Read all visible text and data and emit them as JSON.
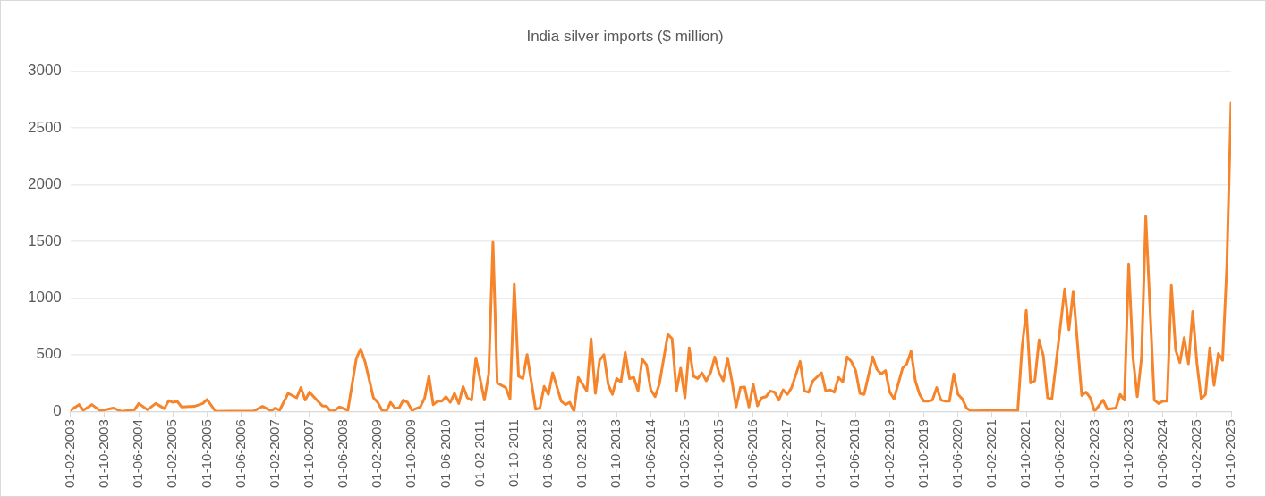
{
  "chart_data": {
    "type": "line",
    "title": "India silver imports ($ million)",
    "x": [
      "2003-02",
      "2003-04",
      "2003-05",
      "2003-07",
      "2003-09",
      "2003-12",
      "2004-02",
      "2004-05",
      "2004-06",
      "2004-08",
      "2004-10",
      "2004-12",
      "2005-01",
      "2005-02",
      "2005-03",
      "2005-04",
      "2005-07",
      "2005-09",
      "2005-10",
      "2005-12",
      "2006-09",
      "2006-11",
      "2006-12",
      "2007-01",
      "2007-02",
      "2007-03",
      "2007-05",
      "2007-07",
      "2007-08",
      "2007-09",
      "2007-10",
      "2008-01",
      "2008-02",
      "2008-03",
      "2008-04",
      "2008-05",
      "2008-07",
      "2008-09",
      "2008-10",
      "2008-11",
      "2009-01",
      "2009-02",
      "2009-03",
      "2009-04",
      "2009-05",
      "2009-06",
      "2009-07",
      "2009-08",
      "2009-09",
      "2009-10",
      "2009-12",
      "2010-01",
      "2010-02",
      "2010-03",
      "2010-04",
      "2010-05",
      "2010-06",
      "2010-07",
      "2010-08",
      "2010-09",
      "2010-10",
      "2010-11",
      "2010-12",
      "2011-01",
      "2011-03",
      "2011-04",
      "2011-05",
      "2011-06",
      "2011-08",
      "2011-09",
      "2011-10",
      "2011-11",
      "2011-12",
      "2012-01",
      "2012-03",
      "2012-04",
      "2012-05",
      "2012-06",
      "2012-07",
      "2012-09",
      "2012-10",
      "2012-11",
      "2012-12",
      "2013-01",
      "2013-03",
      "2013-04",
      "2013-05",
      "2013-06",
      "2013-07",
      "2013-08",
      "2013-09",
      "2013-10",
      "2013-11",
      "2013-12",
      "2014-01",
      "2014-02",
      "2014-03",
      "2014-04",
      "2014-05",
      "2014-06",
      "2014-07",
      "2014-08",
      "2014-10",
      "2014-11",
      "2014-12",
      "2015-01",
      "2015-02",
      "2015-03",
      "2015-04",
      "2015-05",
      "2015-06",
      "2015-07",
      "2015-08",
      "2015-09",
      "2015-10",
      "2015-11",
      "2015-12",
      "2016-01",
      "2016-02",
      "2016-03",
      "2016-04",
      "2016-05",
      "2016-06",
      "2016-07",
      "2016-08",
      "2016-09",
      "2016-10",
      "2016-11",
      "2016-12",
      "2017-01",
      "2017-02",
      "2017-03",
      "2017-05",
      "2017-06",
      "2017-07",
      "2017-08",
      "2017-10",
      "2017-11",
      "2017-12",
      "2018-01",
      "2018-02",
      "2018-03",
      "2018-04",
      "2018-05",
      "2018-06",
      "2018-07",
      "2018-08",
      "2018-10",
      "2018-11",
      "2018-12",
      "2019-01",
      "2019-02",
      "2019-03",
      "2019-05",
      "2019-06",
      "2019-07",
      "2019-08",
      "2019-09",
      "2019-10",
      "2019-11",
      "2019-12",
      "2020-01",
      "2020-02",
      "2020-03",
      "2020-04",
      "2020-05",
      "2020-06",
      "2020-07",
      "2020-08",
      "2020-09",
      "2021-05",
      "2021-08",
      "2021-09",
      "2021-10",
      "2021-11",
      "2021-12",
      "2022-01",
      "2022-02",
      "2022-03",
      "2022-04",
      "2022-07",
      "2022-08",
      "2022-09",
      "2022-11",
      "2022-12",
      "2023-01",
      "2023-02",
      "2023-04",
      "2023-05",
      "2023-07",
      "2023-08",
      "2023-09",
      "2023-10",
      "2023-11",
      "2023-12",
      "2024-01",
      "2024-02",
      "2024-04",
      "2024-05",
      "2024-06",
      "2024-07",
      "2024-08",
      "2024-09",
      "2024-10",
      "2024-11",
      "2024-12",
      "2025-01",
      "2025-02",
      "2025-03",
      "2025-04",
      "2025-05",
      "2025-06",
      "2025-07",
      "2025-08",
      "2025-09",
      "2025-10"
    ],
    "series": [
      {
        "color": "#f5842a",
        "values": [
          10,
          60,
          10,
          60,
          5,
          30,
          0,
          15,
          70,
          15,
          70,
          25,
          95,
          80,
          90,
          40,
          45,
          70,
          105,
          0,
          5,
          45,
          25,
          5,
          30,
          10,
          160,
          120,
          210,
          100,
          170,
          50,
          45,
          0,
          10,
          40,
          10,
          470,
          550,
          440,
          120,
          80,
          10,
          0,
          80,
          30,
          30,
          100,
          80,
          10,
          40,
          120,
          310,
          60,
          90,
          90,
          130,
          80,
          160,
          70,
          220,
          120,
          100,
          470,
          100,
          330,
          1490,
          250,
          210,
          110,
          1120,
          310,
          290,
          500,
          20,
          30,
          220,
          150,
          340,
          90,
          60,
          80,
          0,
          300,
          180,
          640,
          160,
          450,
          500,
          240,
          150,
          290,
          260,
          520,
          290,
          300,
          180,
          460,
          410,
          190,
          130,
          240,
          680,
          640,
          180,
          380,
          120,
          560,
          310,
          290,
          340,
          270,
          340,
          480,
          340,
          270,
          470,
          270,
          40,
          210,
          215,
          40,
          240,
          50,
          120,
          130,
          180,
          170,
          100,
          190,
          150,
          210,
          440,
          180,
          170,
          270,
          340,
          180,
          190,
          170,
          300,
          260,
          480,
          440,
          360,
          160,
          150,
          480,
          370,
          330,
          360,
          170,
          110,
          380,
          420,
          530,
          270,
          150,
          90,
          90,
          100,
          210,
          100,
          90,
          90,
          330,
          150,
          110,
          30,
          5,
          10,
          5,
          560,
          890,
          250,
          270,
          630,
          490,
          120,
          110,
          1080,
          720,
          1060,
          140,
          170,
          120,
          0,
          100,
          20,
          30,
          150,
          100,
          1300,
          480,
          130,
          470,
          1720,
          100,
          70,
          90,
          90,
          1110,
          540,
          430,
          650,
          420,
          880,
          420,
          110,
          150,
          560,
          230,
          510,
          450,
          1280,
          2720
        ]
      }
    ],
    "xlim": [
      "2003-02",
      "2025-10"
    ],
    "xticks": [
      {
        "value": "2003-02",
        "label": "01-02-2003"
      },
      {
        "value": "2003-10",
        "label": "01-10-2003"
      },
      {
        "value": "2004-06",
        "label": "01-06-2004"
      },
      {
        "value": "2005-02",
        "label": "01-02-2005"
      },
      {
        "value": "2005-10",
        "label": "01-10-2005"
      },
      {
        "value": "2006-06",
        "label": "01-06-2006"
      },
      {
        "value": "2007-02",
        "label": "01-02-2007"
      },
      {
        "value": "2007-10",
        "label": "01-10-2007"
      },
      {
        "value": "2008-06",
        "label": "01-06-2008"
      },
      {
        "value": "2009-02",
        "label": "01-02-2009"
      },
      {
        "value": "2009-10",
        "label": "01-10-2009"
      },
      {
        "value": "2010-06",
        "label": "01-06-2010"
      },
      {
        "value": "2011-02",
        "label": "01-02-2011"
      },
      {
        "value": "2011-10",
        "label": "01-10-2011"
      },
      {
        "value": "2012-06",
        "label": "01-06-2012"
      },
      {
        "value": "2013-02",
        "label": "01-02-2013"
      },
      {
        "value": "2013-10",
        "label": "01-10-2013"
      },
      {
        "value": "2014-06",
        "label": "01-06-2014"
      },
      {
        "value": "2015-02",
        "label": "01-02-2015"
      },
      {
        "value": "2015-10",
        "label": "01-10-2015"
      },
      {
        "value": "2016-06",
        "label": "01-06-2016"
      },
      {
        "value": "2017-02",
        "label": "01-02-2017"
      },
      {
        "value": "2017-10",
        "label": "01-10-2017"
      },
      {
        "value": "2018-06",
        "label": "01-06-2018"
      },
      {
        "value": "2019-02",
        "label": "01-02-2019"
      },
      {
        "value": "2019-10",
        "label": "01-10-2019"
      },
      {
        "value": "2020-06",
        "label": "01-06-2020"
      },
      {
        "value": "2021-02",
        "label": "01-02-2021"
      },
      {
        "value": "2021-10",
        "label": "01-10-2021"
      },
      {
        "value": "2022-06",
        "label": "01-06-2022"
      },
      {
        "value": "2023-02",
        "label": "01-02-2023"
      },
      {
        "value": "2023-10",
        "label": "01-10-2023"
      },
      {
        "value": "2024-06",
        "label": "01-06-2024"
      },
      {
        "value": "2025-02",
        "label": "01-02-2025"
      },
      {
        "value": "2025-10",
        "label": "01-10-2025"
      }
    ],
    "ylim": [
      0,
      3000
    ],
    "yticks": [
      0,
      500,
      1000,
      1500,
      2000,
      2500,
      3000
    ],
    "grid": "y",
    "legend": false,
    "marker": "none",
    "line_style": "solid"
  }
}
